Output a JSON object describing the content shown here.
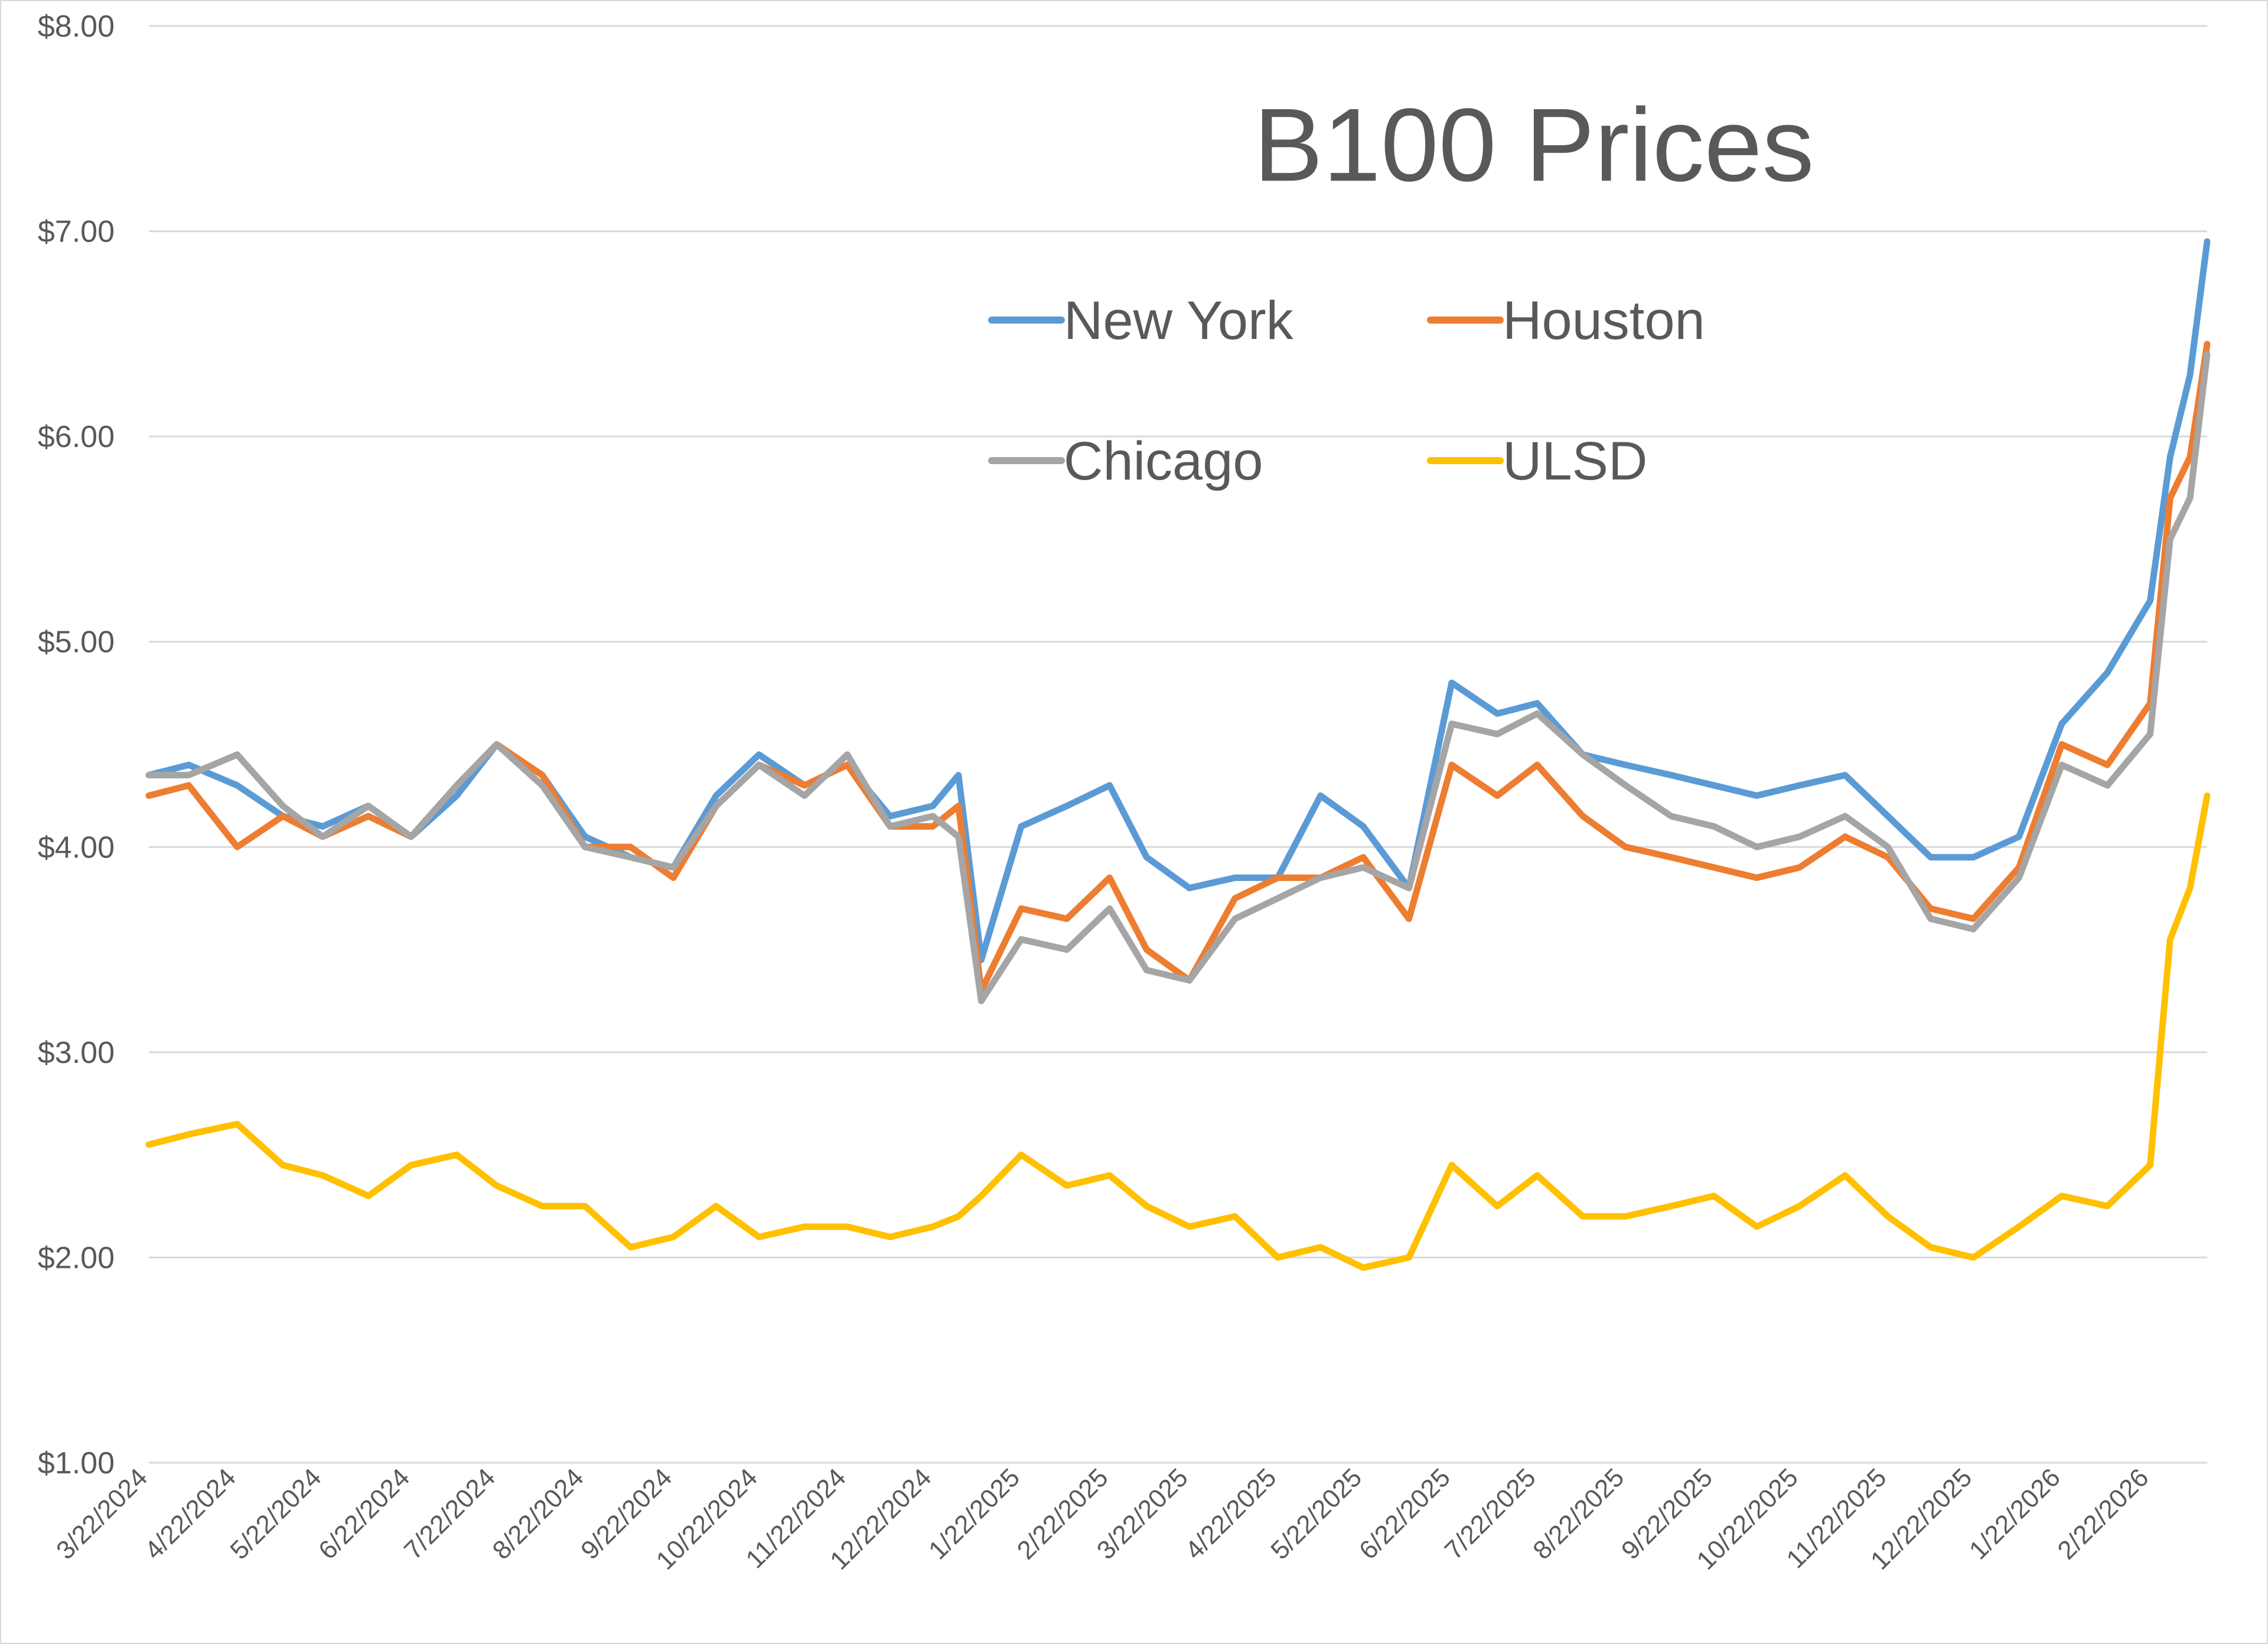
{
  "chart_data": {
    "type": "line",
    "title": "B100 Prices",
    "xlabel": "",
    "ylabel": "",
    "ylim": [
      1.0,
      8.0
    ],
    "y_ticks": [
      "$1.00",
      "$2.00",
      "$3.00",
      "$4.00",
      "$5.00",
      "$6.00",
      "$7.00",
      "$8.00"
    ],
    "x_tick_labels": [
      "3/22/2024",
      "4/22/2024",
      "5/22/2024",
      "6/22/2024",
      "7/22/2024",
      "8/22/2024",
      "9/22/2024",
      "10/22/2024",
      "11/22/2024",
      "12/22/2024",
      "1/22/2025",
      "2/22/2025",
      "3/22/2025",
      "4/22/2025",
      "5/22/2025",
      "6/22/2025",
      "7/22/2025",
      "8/22/2025",
      "9/22/2025",
      "10/22/2025",
      "11/22/2025",
      "12/22/2025",
      "1/22/2026",
      "2/22/2026"
    ],
    "legend_position": "top-right",
    "grid": true,
    "x": [
      "3/22/2024",
      "4/5/2024",
      "4/22/2024",
      "5/8/2024",
      "5/22/2024",
      "6/7/2024",
      "6/22/2024",
      "7/8/2024",
      "7/22/2024",
      "8/7/2024",
      "8/22/2024",
      "9/7/2024",
      "9/22/2024",
      "10/7/2024",
      "10/22/2024",
      "11/7/2024",
      "11/22/2024",
      "12/7/2024",
      "12/22/2024",
      "12/31/2024",
      "1/8/2025",
      "1/22/2025",
      "2/7/2025",
      "2/22/2025",
      "3/7/2025",
      "3/22/2025",
      "4/7/2025",
      "4/22/2025",
      "5/7/2025",
      "5/22/2025",
      "6/7/2025",
      "6/22/2025",
      "7/8/2025",
      "7/22/2025",
      "8/7/2025",
      "8/22/2025",
      "9/7/2025",
      "9/22/2025",
      "10/7/2025",
      "10/22/2025",
      "11/7/2025",
      "11/22/2025",
      "12/7/2025",
      "12/22/2025",
      "1/7/2026",
      "1/22/2026",
      "2/7/2026",
      "2/22/2026",
      "3/1/2026",
      "3/8/2026",
      "3/14/2026"
    ],
    "series": [
      {
        "name": "New York",
        "color": "#5B9BD5",
        "values": [
          4.35,
          4.4,
          4.3,
          4.15,
          4.1,
          4.2,
          4.05,
          4.25,
          4.5,
          4.35,
          4.05,
          3.95,
          3.9,
          4.25,
          4.45,
          4.3,
          4.4,
          4.15,
          4.2,
          4.35,
          3.45,
          4.1,
          4.2,
          4.3,
          3.95,
          3.8,
          3.85,
          3.85,
          4.25,
          4.1,
          3.8,
          4.8,
          4.65,
          4.7,
          4.45,
          4.4,
          4.35,
          4.3,
          4.25,
          4.3,
          4.35,
          4.15,
          3.95,
          3.95,
          4.05,
          4.6,
          4.85,
          5.2,
          5.9,
          6.3,
          6.95
        ]
      },
      {
        "name": "Houston",
        "color": "#ED7D31",
        "values": [
          4.25,
          4.3,
          4.0,
          4.15,
          4.05,
          4.15,
          4.05,
          4.3,
          4.5,
          4.35,
          4.0,
          4.0,
          3.85,
          4.2,
          4.4,
          4.3,
          4.4,
          4.1,
          4.1,
          4.2,
          3.3,
          3.7,
          3.65,
          3.85,
          3.5,
          3.35,
          3.75,
          3.85,
          3.85,
          3.95,
          3.65,
          4.4,
          4.25,
          4.4,
          4.15,
          4.0,
          3.95,
          3.9,
          3.85,
          3.9,
          4.05,
          3.95,
          3.7,
          3.65,
          3.9,
          4.5,
          4.4,
          4.7,
          5.7,
          5.9,
          6.45
        ]
      },
      {
        "name": "Chicago",
        "color": "#A5A5A5",
        "values": [
          4.35,
          4.35,
          4.45,
          4.2,
          4.05,
          4.2,
          4.05,
          4.3,
          4.5,
          4.3,
          4.0,
          3.95,
          3.9,
          4.2,
          4.4,
          4.25,
          4.45,
          4.1,
          4.15,
          4.05,
          3.25,
          3.55,
          3.5,
          3.7,
          3.4,
          3.35,
          3.65,
          3.75,
          3.85,
          3.9,
          3.8,
          4.6,
          4.55,
          4.65,
          4.45,
          4.3,
          4.15,
          4.1,
          4.0,
          4.05,
          4.15,
          4.0,
          3.65,
          3.6,
          3.85,
          4.4,
          4.3,
          4.55,
          5.5,
          5.7,
          6.4
        ]
      },
      {
        "name": "ULSD",
        "color": "#FFC000",
        "values": [
          2.55,
          2.6,
          2.65,
          2.45,
          2.4,
          2.3,
          2.45,
          2.5,
          2.35,
          2.25,
          2.25,
          2.05,
          2.1,
          2.25,
          2.1,
          2.15,
          2.15,
          2.1,
          2.15,
          2.2,
          2.3,
          2.5,
          2.35,
          2.4,
          2.25,
          2.15,
          2.2,
          2.0,
          2.05,
          1.95,
          2.0,
          2.45,
          2.25,
          2.4,
          2.2,
          2.2,
          2.25,
          2.3,
          2.15,
          2.25,
          2.4,
          2.2,
          2.05,
          2.0,
          2.15,
          2.3,
          2.25,
          2.45,
          3.55,
          3.8,
          4.25
        ]
      }
    ]
  }
}
